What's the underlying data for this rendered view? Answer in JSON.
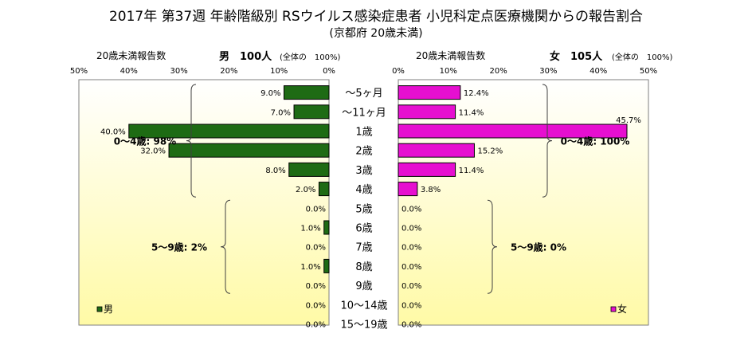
{
  "header": {
    "title": "2017年 第37週 年齢階級別 RSウイルス感染症患者 小児科定点医療機関からの報告割合",
    "subtitle": "(京都府 20歳未満)"
  },
  "left_panel": {
    "count_label": "20歳未満報告数",
    "sex_count": "男　100人",
    "share_label": "(全体の　100%)"
  },
  "right_panel": {
    "count_label": "20歳未満報告数",
    "sex_count": "女　105人",
    "share_label": "(全体の　100%)"
  },
  "colors": {
    "male": "#1e6b14",
    "female": "#e60fd0",
    "bg_top": "#ffffff",
    "bg_bottom": "#fffaa6"
  },
  "chart_data": {
    "type": "bar",
    "orientation": "horizontal",
    "layout": "population-pyramid",
    "categories": [
      "～5ヶ月",
      "～11ヶ月",
      "1歳",
      "2歳",
      "3歳",
      "4歳",
      "5歳",
      "6歳",
      "7歳",
      "8歳",
      "9歳",
      "10～14歳",
      "15～19歳"
    ],
    "series": [
      {
        "name": "男",
        "side": "left",
        "values": [
          9.0,
          7.0,
          40.0,
          32.0,
          8.0,
          2.0,
          0.0,
          1.0,
          0.0,
          1.0,
          0.0,
          0.0,
          0.0
        ],
        "labels": [
          "9.0%",
          "7.0%",
          "40.0%",
          "32.0%",
          "8.0%",
          "2.0%",
          "0.0%",
          "1.0%",
          "0.0%",
          "1.0%",
          "0.0%",
          "0.0%",
          "0.0%"
        ]
      },
      {
        "name": "女",
        "side": "right",
        "values": [
          12.4,
          11.4,
          45.7,
          15.2,
          11.4,
          3.8,
          0.0,
          0.0,
          0.0,
          0.0,
          0.0,
          0.0,
          0.0
        ],
        "labels": [
          "12.4%",
          "11.4%",
          "45.7%",
          "15.2%",
          "11.4%",
          "3.8%",
          "0.0%",
          "0.0%",
          "0.0%",
          "0.0%",
          "0.0%",
          "0.0%",
          "0.0%"
        ]
      }
    ],
    "xlim": [
      0,
      50
    ],
    "left_ticks": [
      "50%",
      "40%",
      "30%",
      "20%",
      "10%",
      "0%"
    ],
    "right_ticks": [
      "0%",
      "10%",
      "20%",
      "30%",
      "40%",
      "50%"
    ],
    "annotations": [
      {
        "side": "left",
        "text": "0～4歳: 98%",
        "from": 0,
        "to": 5
      },
      {
        "side": "left",
        "text": "5～9歳: 2%",
        "from": 6,
        "to": 10
      },
      {
        "side": "right",
        "text": "0～4歳: 100%",
        "from": 0,
        "to": 5
      },
      {
        "side": "right",
        "text": "5～9歳: 0%",
        "from": 6,
        "to": 10
      }
    ],
    "grid": false,
    "legend_position": "bottom"
  }
}
